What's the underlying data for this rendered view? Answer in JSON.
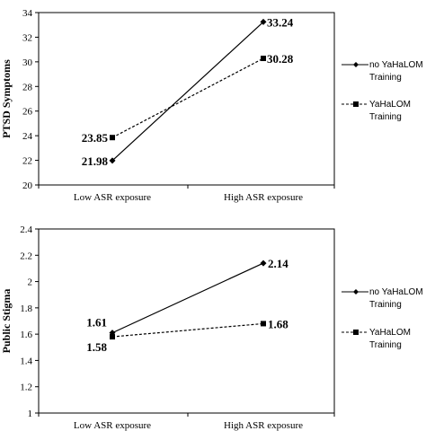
{
  "chart_data": [
    {
      "type": "line",
      "ylabel": "PTSD Symptoms",
      "categories": [
        "Low ASR exposure",
        "High ASR exposure"
      ],
      "ylim": [
        20,
        34
      ],
      "yticks": [
        20,
        22,
        24,
        26,
        28,
        30,
        32,
        34
      ],
      "series": [
        {
          "name": "no YaHaLOM Training",
          "line_style": "solid",
          "marker": "diamond",
          "values": [
            21.98,
            33.24
          ],
          "labels": [
            "21.98",
            "33.24"
          ]
        },
        {
          "name": "YaHaLOM Training",
          "line_style": "dashed",
          "marker": "square",
          "values": [
            23.85,
            30.28
          ],
          "labels": [
            "23.85",
            "30.28"
          ]
        }
      ],
      "legend_lines": [
        [
          "no YaHaLOM",
          "Training"
        ],
        [
          "YaHaLOM",
          "Training"
        ]
      ],
      "legend_position": "right"
    },
    {
      "type": "line",
      "ylabel": "Public Stigma",
      "categories": [
        "Low ASR exposure",
        "High ASR exposure"
      ],
      "ylim": [
        1,
        2.4
      ],
      "yticks": [
        "1",
        "1.2",
        "1.4",
        "1.6",
        "1.8",
        "2",
        "2.2",
        "2.4"
      ],
      "series": [
        {
          "name": "no YaHaLOM Training",
          "line_style": "solid",
          "marker": "diamond",
          "values": [
            1.61,
            2.14
          ],
          "labels": [
            "1.61",
            "2.14"
          ]
        },
        {
          "name": "YaHaLOM Training",
          "line_style": "dashed",
          "marker": "square",
          "values": [
            1.58,
            1.68
          ],
          "labels": [
            "1.58",
            "1.68"
          ]
        }
      ],
      "legend_lines": [
        [
          "no YaHaLOM",
          "Training"
        ],
        [
          "YaHaLOM",
          "Training"
        ]
      ],
      "legend_position": "right"
    }
  ]
}
